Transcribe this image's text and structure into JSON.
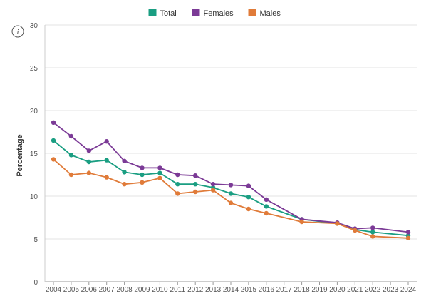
{
  "chart_data": {
    "type": "line",
    "title": "",
    "xlabel": "",
    "ylabel": "Percentage",
    "ylim": [
      0,
      30
    ],
    "yticks": [
      0,
      5,
      10,
      15,
      20,
      25,
      30
    ],
    "grid": "horizontal",
    "legend_position": "top-center",
    "categories": [
      "2004",
      "2005",
      "2006",
      "2007",
      "2008",
      "2009",
      "2010",
      "2011",
      "2012",
      "2013",
      "2014",
      "2015",
      "2016",
      "2017",
      "2018",
      "2019",
      "2020",
      "2021",
      "2022",
      "2023",
      "2024"
    ],
    "series": [
      {
        "name": "Total",
        "color": "#1a9e82",
        "values": [
          16.5,
          14.8,
          14.0,
          14.2,
          12.8,
          12.5,
          12.7,
          11.4,
          11.4,
          11.0,
          10.3,
          9.9,
          8.8,
          null,
          7.3,
          null,
          6.8,
          6.1,
          5.8,
          null,
          5.4
        ]
      },
      {
        "name": "Females",
        "color": "#7b3a96",
        "values": [
          18.6,
          17.0,
          15.3,
          16.4,
          14.1,
          13.3,
          13.3,
          12.5,
          12.4,
          11.4,
          11.3,
          11.2,
          9.6,
          null,
          7.3,
          null,
          6.9,
          6.2,
          6.3,
          null,
          5.8
        ]
      },
      {
        "name": "Males",
        "color": "#e07b39",
        "values": [
          14.3,
          12.5,
          12.7,
          12.2,
          11.4,
          11.6,
          12.1,
          10.3,
          10.5,
          10.7,
          9.2,
          8.5,
          8.0,
          null,
          7.0,
          null,
          6.8,
          6.0,
          5.3,
          null,
          5.1
        ]
      }
    ]
  },
  "info_icon": {
    "name": "info-icon",
    "glyph": "i"
  }
}
